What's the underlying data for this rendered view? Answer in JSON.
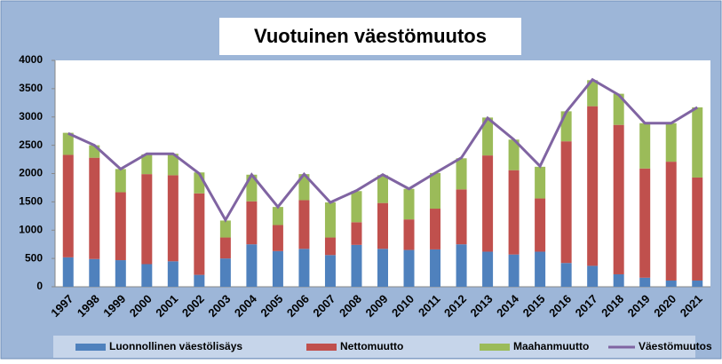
{
  "chart_data": {
    "type": "bar",
    "stacked": true,
    "title": "Vuotuinen väestömuutos",
    "categories": [
      "1997",
      "1998",
      "1999",
      "2000",
      "2001",
      "2002",
      "2003",
      "2004",
      "2005",
      "2006",
      "2007",
      "2008",
      "2009",
      "2010",
      "2011",
      "2012",
      "2013",
      "2014",
      "2015",
      "2016",
      "2017",
      "2018",
      "2019",
      "2020",
      "2021"
    ],
    "series": [
      {
        "name": "Luonnollinen väestölisäys",
        "type": "bar",
        "color": "#4f81bd",
        "values": [
          520,
          490,
          470,
          400,
          450,
          210,
          500,
          750,
          630,
          670,
          560,
          740,
          670,
          650,
          660,
          750,
          620,
          570,
          620,
          420,
          370,
          220,
          160,
          110,
          110
        ]
      },
      {
        "name": "Nettomuutto",
        "type": "bar",
        "color": "#c0504d",
        "values": [
          1810,
          1790,
          1200,
          1590,
          1520,
          1440,
          370,
          760,
          460,
          860,
          310,
          400,
          810,
          540,
          720,
          970,
          1700,
          1490,
          940,
          2150,
          2820,
          2640,
          1930,
          2100,
          1820
        ]
      },
      {
        "name": "Maahanmuutto",
        "type": "bar",
        "color": "#9bbb59",
        "values": [
          390,
          220,
          410,
          350,
          380,
          370,
          300,
          470,
          320,
          460,
          620,
          550,
          490,
          540,
          630,
          550,
          670,
          540,
          560,
          530,
          460,
          550,
          800,
          680,
          1240
        ]
      },
      {
        "name": "Väestömuutos",
        "type": "line",
        "color": "#8064a2",
        "values": [
          2710,
          2500,
          2080,
          2350,
          2350,
          2000,
          1180,
          1980,
          1410,
          1990,
          1490,
          1700,
          1980,
          1730,
          2010,
          2280,
          2980,
          2600,
          2130,
          3090,
          3660,
          3390,
          2890,
          2890,
          3170
        ]
      }
    ],
    "ylim": [
      0,
      4000
    ],
    "yticks": [
      0,
      500,
      1000,
      1500,
      2000,
      2500,
      3000,
      3500,
      4000
    ],
    "grid": false,
    "legend": "bottom"
  }
}
